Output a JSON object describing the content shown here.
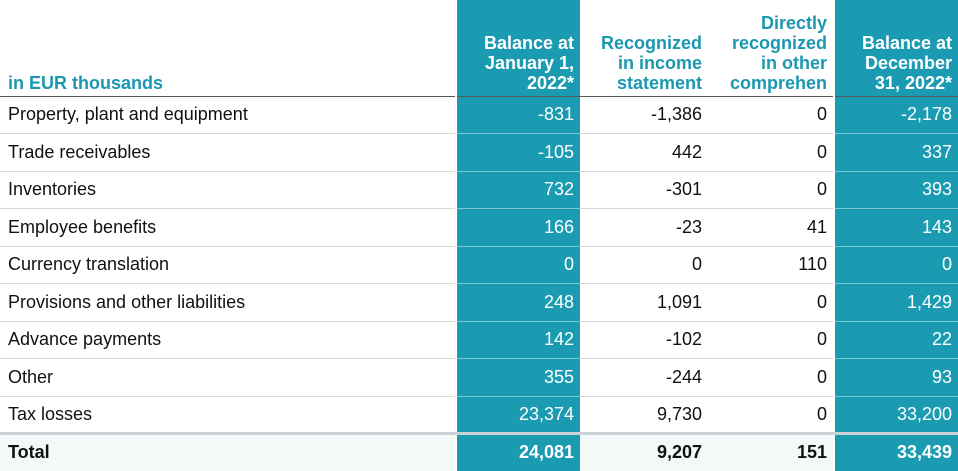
{
  "table": {
    "headers": {
      "label": "in EUR thousands",
      "col1": [
        "Balance at",
        "January 1,",
        "2022*"
      ],
      "col2": [
        "Recognized",
        "in income",
        "statement"
      ],
      "col3": [
        "Directly",
        "recognized",
        "in other",
        "comprehen"
      ],
      "col4": [
        "Balance at",
        "December",
        "31, 2022*"
      ]
    },
    "rows": [
      {
        "label": "Property, plant and equipment",
        "v1": "-831",
        "v2": "-1,386",
        "v3": "0",
        "v4": "-2,178"
      },
      {
        "label": "Trade receivables",
        "v1": "-105",
        "v2": "442",
        "v3": "0",
        "v4": "337"
      },
      {
        "label": "Inventories",
        "v1": "732",
        "v2": "-301",
        "v3": "0",
        "v4": "393"
      },
      {
        "label": "Employee benefits",
        "v1": "166",
        "v2": "-23",
        "v3": "41",
        "v4": "143"
      },
      {
        "label": "Currency translation",
        "v1": "0",
        "v2": "0",
        "v3": "110",
        "v4": "0"
      },
      {
        "label": "Provisions and other liabilities",
        "v1": "248",
        "v2": "1,091",
        "v3": "0",
        "v4": "1,429"
      },
      {
        "label": "Advance payments",
        "v1": "142",
        "v2": "-102",
        "v3": "0",
        "v4": "22"
      },
      {
        "label": "Other",
        "v1": "355",
        "v2": "-244",
        "v3": "0",
        "v4": "93"
      },
      {
        "label": "Tax losses",
        "v1": "23,374",
        "v2": "9,730",
        "v3": "0",
        "v4": "33,200"
      }
    ],
    "total": {
      "label": "Total",
      "v1": "24,081",
      "v2": "9,207",
      "v3": "151",
      "v4": "33,439"
    }
  },
  "colors": {
    "accent": "#1a9bb2",
    "header_text": "#1b98b0"
  }
}
